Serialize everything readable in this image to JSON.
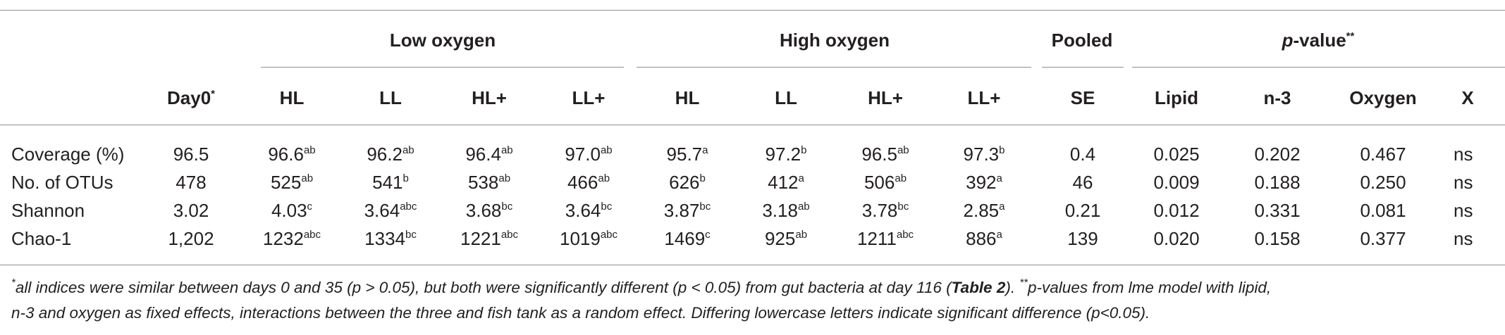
{
  "groups": {
    "low_oxygen": "Low oxygen",
    "high_oxygen": "High oxygen",
    "pooled": "Pooled",
    "pvalue_main": "p",
    "pvalue_rest": "-value",
    "pvalue_mark": "**"
  },
  "columns": {
    "day0": "Day0",
    "day0_mark": "*",
    "low": [
      "HL",
      "LL",
      "HL+",
      "LL+"
    ],
    "high": [
      "HL",
      "LL",
      "HL+",
      "LL+"
    ],
    "se": "SE",
    "pvals": [
      "Lipid",
      "n-3",
      "Oxygen",
      "X"
    ]
  },
  "rows": [
    {
      "label": "Coverage (%)",
      "day0": "96.5",
      "low": [
        [
          "96.6",
          "ab"
        ],
        [
          "96.2",
          "ab"
        ],
        [
          "96.4",
          "ab"
        ],
        [
          "97.0",
          "ab"
        ]
      ],
      "high": [
        [
          "95.7",
          "a"
        ],
        [
          "97.2",
          "b"
        ],
        [
          "96.5",
          "ab"
        ],
        [
          "97.3",
          "b"
        ]
      ],
      "se": "0.4",
      "p": [
        "0.025",
        "0.202",
        "0.467",
        "ns"
      ]
    },
    {
      "label": "No. of OTUs",
      "day0": "478",
      "low": [
        [
          "525",
          "ab"
        ],
        [
          "541",
          "b"
        ],
        [
          "538",
          "ab"
        ],
        [
          "466",
          "ab"
        ]
      ],
      "high": [
        [
          "626",
          "b"
        ],
        [
          "412",
          "a"
        ],
        [
          "506",
          "ab"
        ],
        [
          "392",
          "a"
        ]
      ],
      "se": "46",
      "p": [
        "0.009",
        "0.188",
        "0.250",
        "ns"
      ]
    },
    {
      "label": "Shannon",
      "day0": "3.02",
      "low": [
        [
          "4.03",
          "c"
        ],
        [
          "3.64",
          "abc"
        ],
        [
          "3.68",
          "bc"
        ],
        [
          "3.64",
          "bc"
        ]
      ],
      "high": [
        [
          "3.87",
          "bc"
        ],
        [
          "3.18",
          "ab"
        ],
        [
          "3.78",
          "bc"
        ],
        [
          "2.85",
          "a"
        ]
      ],
      "se": "0.21",
      "p": [
        "0.012",
        "0.331",
        "0.081",
        "ns"
      ]
    },
    {
      "label": "Chao-1",
      "day0": "1,202",
      "low": [
        [
          "1232",
          "abc"
        ],
        [
          "1334",
          "bc"
        ],
        [
          "1221",
          "abc"
        ],
        [
          "1019",
          "abc"
        ]
      ],
      "high": [
        [
          "1469",
          "c"
        ],
        [
          "925",
          "ab"
        ],
        [
          "1211",
          "abc"
        ],
        [
          "886",
          "a"
        ]
      ],
      "se": "139",
      "p": [
        "0.020",
        "0.158",
        "0.377",
        "ns"
      ]
    }
  ],
  "footnote": {
    "mark1": "*",
    "part1": "all indices were similar between days 0 and 35 (p > 0.05), but both were significantly different (p < 0.05) from gut bacteria at day 116 (",
    "table_ref": "Table 2",
    "part2": "). ",
    "mark2": "**",
    "part3": "p-values from lme model with lipid,",
    "line2": "n-3 and oxygen as fixed effects, interactions between the three and fish tank as a random effect. Differing lowercase letters indicate significant difference (p<0.05)."
  }
}
